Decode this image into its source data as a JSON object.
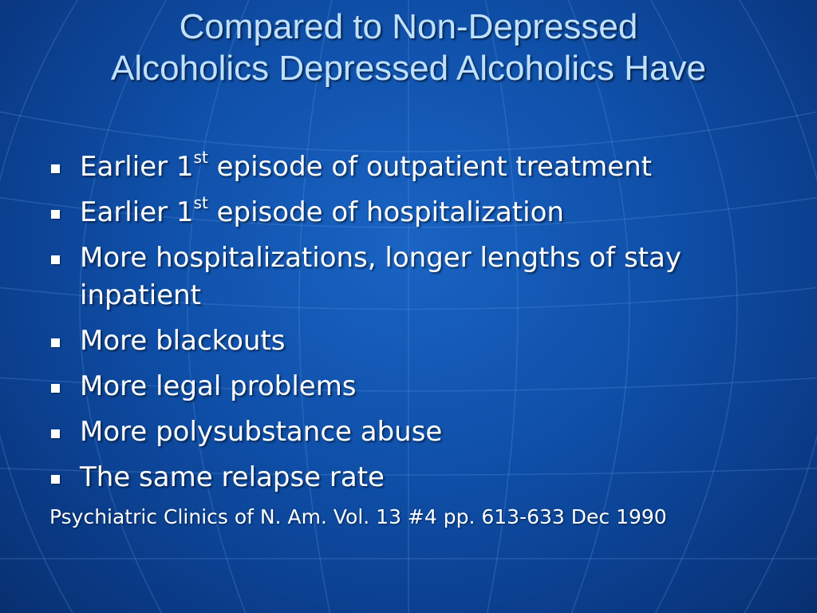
{
  "slide": {
    "title_line1": "Compared to Non-Depressed",
    "title_line2": "Alcoholics Depressed Alcoholics Have",
    "bullets": [
      {
        "pre": "Earlier 1",
        "sup": "st",
        "post": " episode of outpatient treatment"
      },
      {
        "pre": "Earlier 1",
        "sup": "st",
        "post": " episode of hospitalization"
      },
      {
        "pre": "More hospitalizations, longer lengths of stay inpatient",
        "sup": "",
        "post": ""
      },
      {
        "pre": "More blackouts",
        "sup": "",
        "post": ""
      },
      {
        "pre": "More legal problems",
        "sup": "",
        "post": ""
      },
      {
        "pre": "More polysubstance abuse",
        "sup": "",
        "post": ""
      },
      {
        "pre": "The same relapse rate",
        "sup": "",
        "post": ""
      }
    ],
    "citation": "Psychiatric Clinics of N. Am. Vol. 13 #4 pp. 613-633 Dec 1990"
  },
  "colors": {
    "background": "#0f4fa8",
    "title_text": "#bfe1ff",
    "body_text": "#ffffff"
  }
}
